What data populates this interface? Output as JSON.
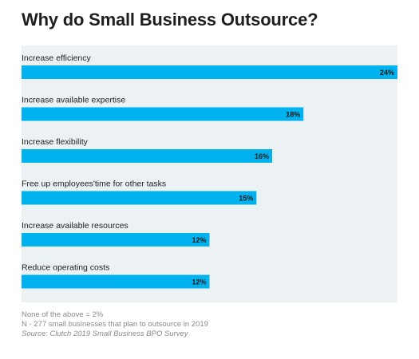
{
  "title": "Why do Small Business Outsource?",
  "colors": {
    "bar": "#00b2ee",
    "panel": "#ecf1f3",
    "label": "#222222",
    "value": "#1a1a1a"
  },
  "chart_data": {
    "type": "bar",
    "orientation": "horizontal",
    "categories": [
      "Increase efficiency",
      "Increase available expertise",
      "Increase flexibility",
      "Free up employees'time for other tasks",
      "Increase available resources",
      "Reduce operating costs"
    ],
    "values": [
      24,
      18,
      16,
      15,
      12,
      12
    ],
    "value_labels": [
      "24%",
      "18%",
      "16%",
      "15%",
      "12%",
      "12%"
    ],
    "xlim": [
      0,
      24
    ],
    "grid": false,
    "legend": "none"
  },
  "footer": {
    "line1": "None of the above = 2%",
    "line2": "N - 277 small businesses that plan to outsource in 2019",
    "source": "Source: Clutch 2019 Small Business BPO Survey"
  }
}
